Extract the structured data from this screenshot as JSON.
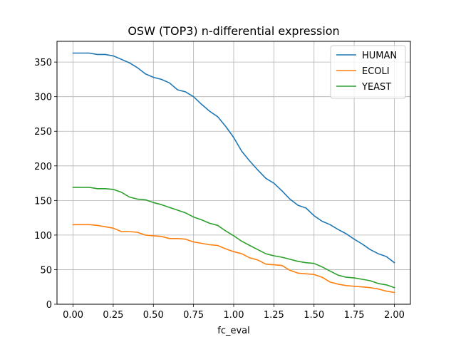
{
  "chart_data": {
    "type": "line",
    "title": "OSW (TOP3) n-differential expression",
    "xlabel": "fc_eval",
    "ylabel": "",
    "xlim": [
      -0.1,
      2.1
    ],
    "ylim": [
      0,
      380
    ],
    "xticks": [
      0.0,
      0.25,
      0.5,
      0.75,
      1.0,
      1.25,
      1.5,
      1.75,
      2.0
    ],
    "xtick_labels": [
      "0.00",
      "0.25",
      "0.50",
      "0.75",
      "1.00",
      "1.25",
      "1.50",
      "1.75",
      "2.00"
    ],
    "yticks": [
      0,
      50,
      100,
      150,
      200,
      250,
      300,
      350
    ],
    "ytick_labels": [
      "0",
      "50",
      "100",
      "150",
      "200",
      "250",
      "300",
      "350"
    ],
    "grid": true,
    "legend_position": "top-right",
    "x": [
      0.0,
      0.05,
      0.1,
      0.15,
      0.2,
      0.25,
      0.3,
      0.35,
      0.4,
      0.45,
      0.5,
      0.55,
      0.6,
      0.65,
      0.7,
      0.75,
      0.8,
      0.85,
      0.9,
      0.95,
      1.0,
      1.05,
      1.1,
      1.15,
      1.2,
      1.25,
      1.3,
      1.35,
      1.4,
      1.45,
      1.5,
      1.55,
      1.6,
      1.65,
      1.7,
      1.75,
      1.8,
      1.85,
      1.9,
      1.95,
      2.0
    ],
    "series": [
      {
        "name": "HUMAN",
        "color": "#1f77b4",
        "values": [
          363,
          363,
          363,
          361,
          361,
          359,
          354,
          349,
          342,
          333,
          328,
          325,
          320,
          310,
          307,
          300,
          289,
          279,
          271,
          257,
          241,
          221,
          207,
          194,
          182,
          175,
          164,
          152,
          143,
          139,
          128,
          120,
          115,
          108,
          102,
          94,
          87,
          79,
          73,
          69,
          60
        ]
      },
      {
        "name": "ECOLI",
        "color": "#ff7f0e",
        "values": [
          115,
          115,
          115,
          114,
          112,
          110,
          105,
          105,
          104,
          100,
          99,
          98,
          95,
          95,
          94,
          90,
          88,
          86,
          85,
          80,
          76,
          73,
          67,
          64,
          58,
          57,
          56,
          49,
          45,
          44,
          43,
          39,
          32,
          29,
          27,
          26,
          25,
          24,
          22,
          19,
          17
        ]
      },
      {
        "name": "YEAST",
        "color": "#2ca02c",
        "values": [
          169,
          169,
          169,
          167,
          167,
          166,
          162,
          155,
          152,
          151,
          147,
          144,
          140,
          136,
          132,
          126,
          122,
          117,
          114,
          106,
          99,
          91,
          85,
          79,
          73,
          70,
          68,
          65,
          62,
          60,
          59,
          54,
          48,
          42,
          39,
          38,
          36,
          34,
          30,
          28,
          24
        ]
      }
    ]
  }
}
